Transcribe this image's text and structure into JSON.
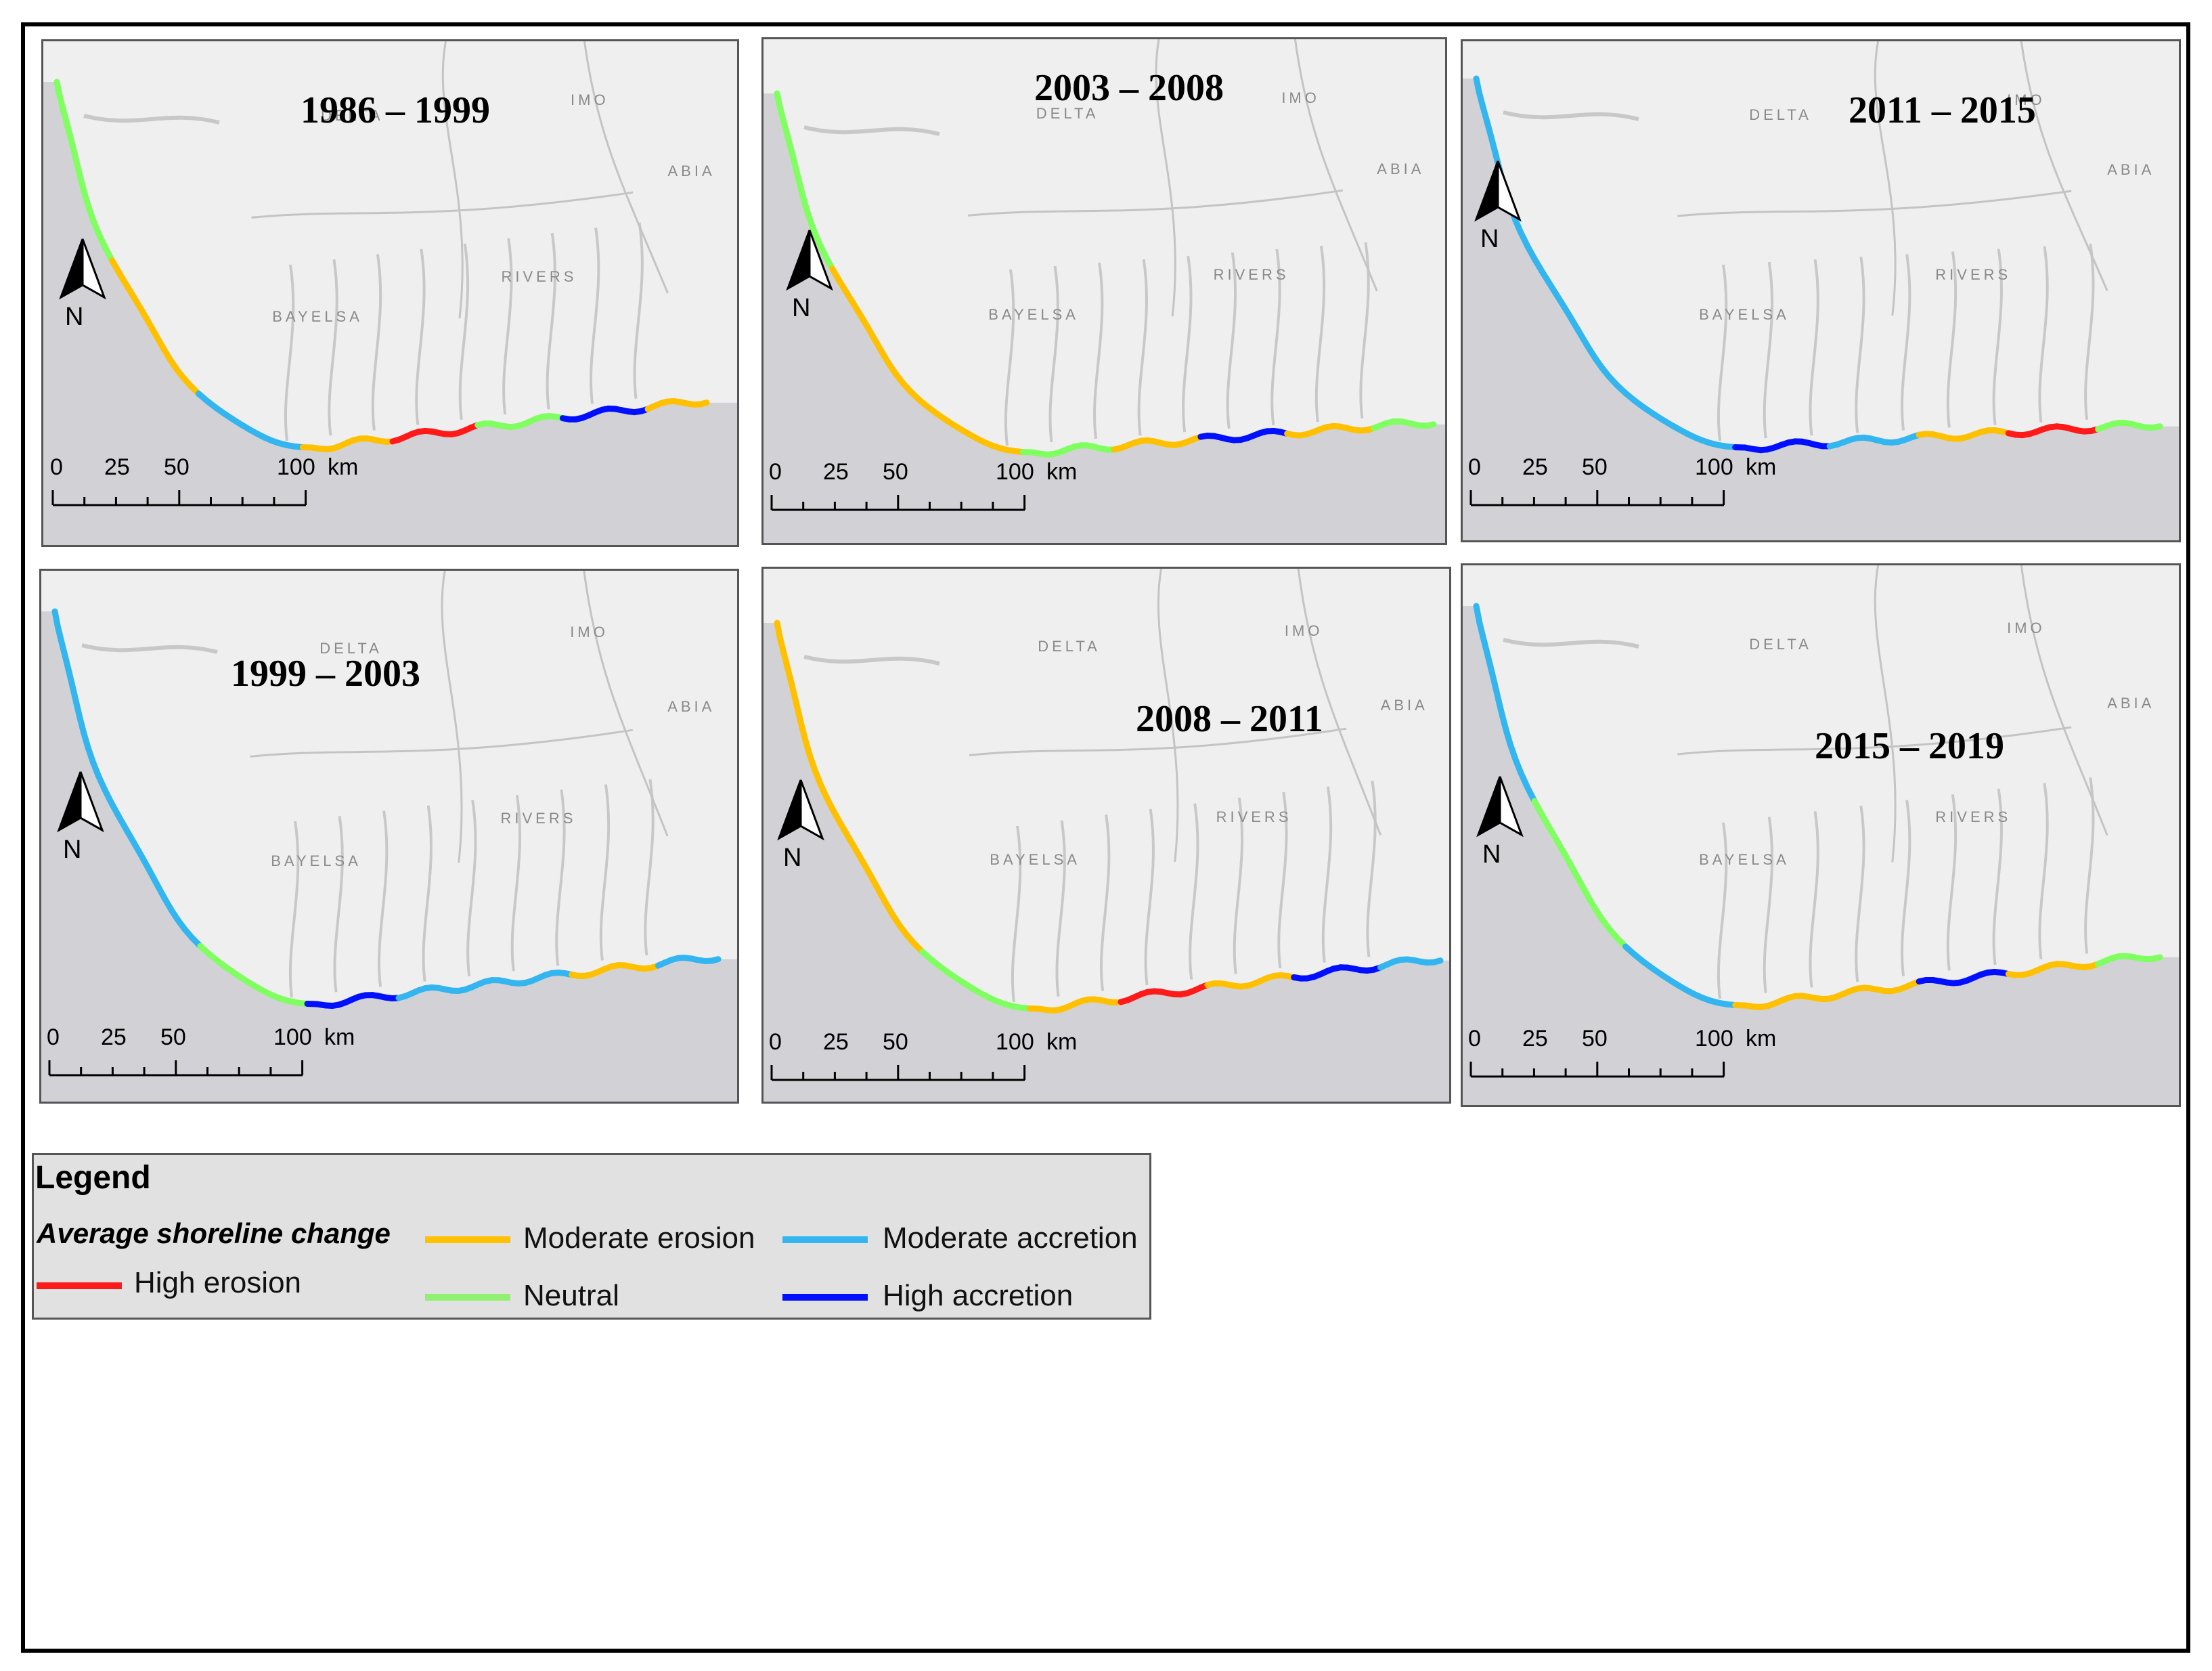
{
  "maps": [
    {
      "id": "p1",
      "title": "1986 – 1999",
      "palette": [
        "#7fff60",
        "#ffc000",
        "#33b5f0",
        "#ffc000",
        "#ff1a1a",
        "#7fff60",
        "#0010ff",
        "#ffc000"
      ]
    },
    {
      "id": "p2",
      "title": "2003 – 2008",
      "palette": [
        "#7fff60",
        "#ffc000",
        "#ffc000",
        "#7fff60",
        "#ffc000",
        "#0010ff",
        "#ffc000",
        "#7fff60"
      ]
    },
    {
      "id": "p3",
      "title": "2011 – 2015",
      "palette": [
        "#33b5f0",
        "#33b5f0",
        "#33b5f0",
        "#0010ff",
        "#33b5f0",
        "#ffc000",
        "#ff1a1a",
        "#7fff60"
      ]
    },
    {
      "id": "p4",
      "title": "1999 – 2003",
      "palette": [
        "#33b5f0",
        "#33b5f0",
        "#7fff60",
        "#0010ff",
        "#33b5f0",
        "#33b5f0",
        "#ffc000",
        "#33b5f0"
      ]
    },
    {
      "id": "p5",
      "title": "2008 – 2011",
      "palette": [
        "#ffc000",
        "#ffc000",
        "#7fff60",
        "#ffc000",
        "#ff1a1a",
        "#ffc000",
        "#0010ff",
        "#33b5f0"
      ]
    },
    {
      "id": "p6",
      "title": "2015 – 2019",
      "palette": [
        "#33b5f0",
        "#7fff60",
        "#33b5f0",
        "#ffc000",
        "#ffc000",
        "#0010ff",
        "#ffc000",
        "#7fff60"
      ]
    }
  ],
  "regions": {
    "delta": "DELTA",
    "imo": "IMO",
    "abia": "ABIA",
    "rivers": "RIVERS",
    "bayelsa": "BAYELSA"
  },
  "north_label": "N",
  "scale": {
    "t0": "0",
    "t1": "25",
    "t2": "50",
    "t3": "100",
    "unit": "km"
  },
  "legend": {
    "title": "Legend",
    "subtitle": "Average shoreline change",
    "items": {
      "high_erosion": {
        "label": "High erosion",
        "color": "#ff1a1a"
      },
      "moderate_erosion": {
        "label": "Moderate erosion",
        "color": "#ffc000"
      },
      "neutral": {
        "label": "Neutral",
        "color": "#90f070"
      },
      "moderate_accretion": {
        "label": "Moderate accretion",
        "color": "#33b5f0"
      },
      "high_accretion": {
        "label": "High accretion",
        "color": "#0010ff"
      }
    }
  },
  "colors": {
    "land": "#efefef",
    "sea": "#d2d2d6",
    "river": "#c8c8c8",
    "boundary": "#c4c4c4"
  }
}
